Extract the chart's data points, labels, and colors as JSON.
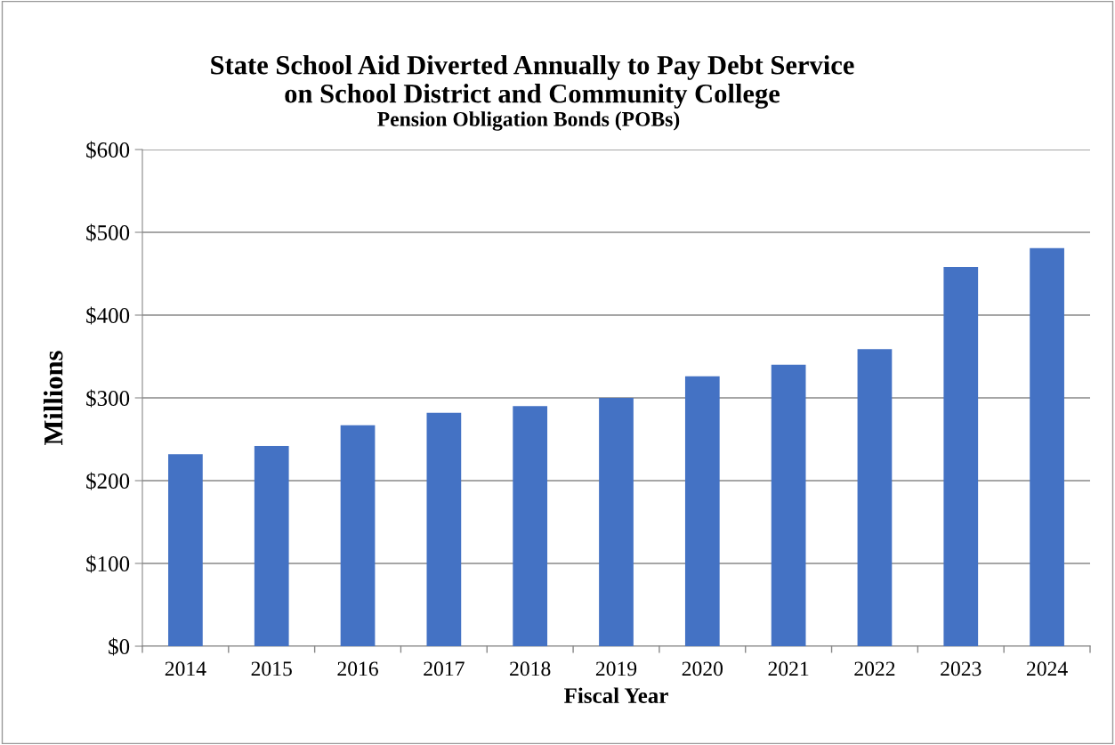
{
  "chart_data": {
    "type": "bar",
    "title": "State School Aid Diverted Annually to Pay Debt Service\non School District and Community College",
    "subtitle": "Pension Obligation Bonds (POBs)",
    "xlabel": "Fiscal Year",
    "ylabel": "Millions",
    "categories": [
      "2014",
      "2015",
      "2016",
      "2017",
      "2018",
      "2019",
      "2020",
      "2021",
      "2022",
      "2023",
      "2024"
    ],
    "values": [
      232,
      242,
      267,
      282,
      290,
      300,
      326,
      340,
      359,
      458,
      481
    ],
    "color": "#4472c4",
    "ylim": [
      0,
      600
    ],
    "yticks": [
      {
        "value": 0,
        "label": "$0"
      },
      {
        "value": 100,
        "label": "$100"
      },
      {
        "value": 200,
        "label": "$200"
      },
      {
        "value": 300,
        "label": "$300"
      },
      {
        "value": 400,
        "label": "$400"
      },
      {
        "value": 500,
        "label": "$500"
      },
      {
        "value": 600,
        "label": "$600"
      }
    ],
    "grid": "y"
  }
}
